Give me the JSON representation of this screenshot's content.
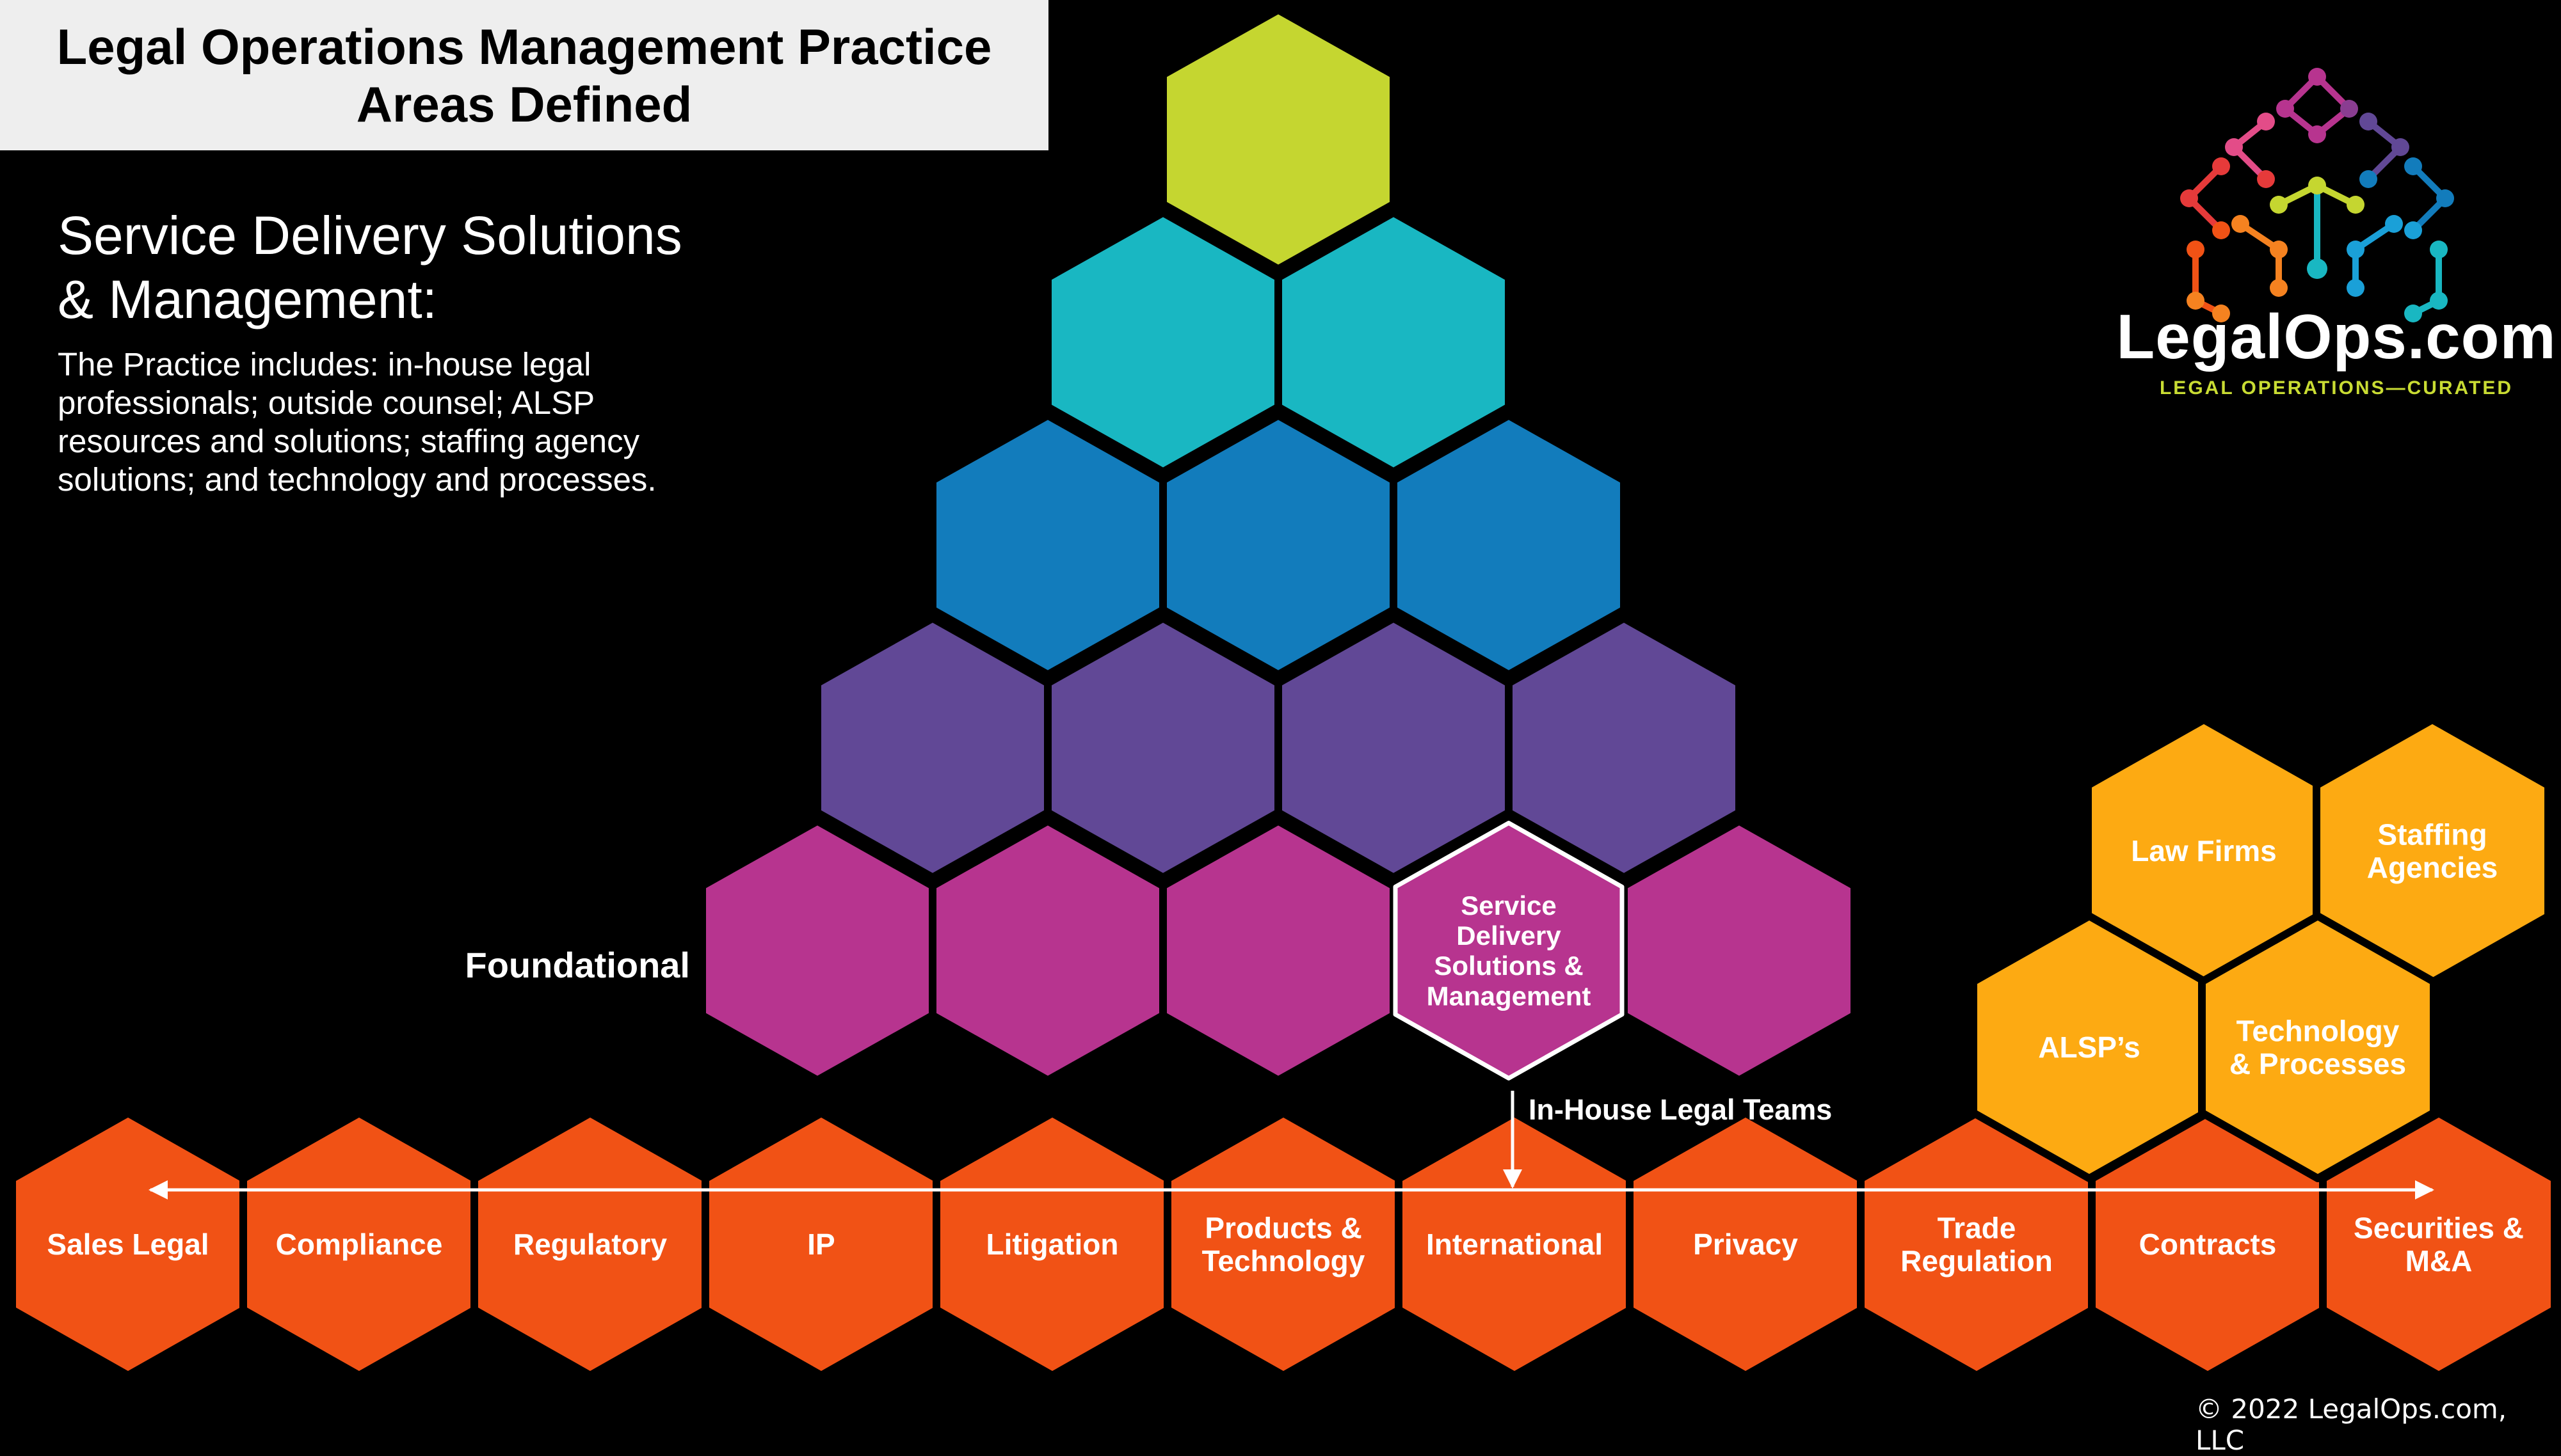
{
  "title": "Legal Operations Management Practice\nAreas Defined",
  "heading": "Service Delivery Solutions\n& Management:",
  "description": "The Practice includes: in-house legal professionals; outside counsel; ALSP resources and solutions; staffing agency solutions; and technology and processes.",
  "pyramid_label": "Foundational",
  "highlight_label": [
    "Service",
    "Delivery",
    "Solutions &",
    "Management"
  ],
  "connector_label": "In-House Legal Teams",
  "base_areas": [
    [
      "Sales Legal"
    ],
    [
      "Compliance"
    ],
    [
      "Regulatory"
    ],
    [
      "IP"
    ],
    [
      "Litigation"
    ],
    [
      "Products &",
      "Technology"
    ],
    [
      "International"
    ],
    [
      "Privacy"
    ],
    [
      "Trade",
      "Regulation"
    ],
    [
      "Contracts"
    ],
    [
      "Securities &",
      "M&A"
    ]
  ],
  "resources": [
    [
      "Law Firms"
    ],
    [
      "Staffing",
      "Agencies"
    ],
    [
      "ALSP’s"
    ],
    [
      "Technology",
      "& Processes"
    ]
  ],
  "logo": {
    "name": "LegalOps.com",
    "tagline": "LEGAL OPERATIONS—CURATED",
    "icon": "molecule-network-icon"
  },
  "copyright": "© 2022 LegalOps.com, LLC",
  "colors": {
    "row1": "#c5d630",
    "row2": "#19b7c2",
    "row3": "#127cbc",
    "row4": "#614896",
    "row5": "#b7348f",
    "base": "#f15215",
    "resource": "#fdaa12",
    "border": "#000000",
    "highlight_border": "#ffffff"
  }
}
